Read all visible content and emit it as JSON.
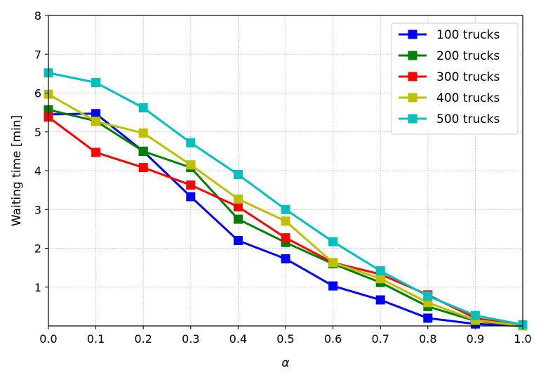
{
  "chart_data": {
    "type": "line",
    "title": "",
    "xlabel": "α",
    "ylabel": "Waiting time [min]",
    "xlim": [
      0.0,
      1.0
    ],
    "ylim": [
      0,
      8
    ],
    "xticks": [
      "0.0",
      "0.1",
      "0.2",
      "0.3",
      "0.4",
      "0.5",
      "0.6",
      "0.7",
      "0.8",
      "0.9",
      "1.0"
    ],
    "yticks": [
      "1",
      "2",
      "3",
      "4",
      "5",
      "6",
      "7",
      "8"
    ],
    "grid": true,
    "legend_position": "top-right",
    "x": [
      0.0,
      0.1,
      0.2,
      0.3,
      0.4,
      0.5,
      0.6,
      0.7,
      0.8,
      0.9,
      1.0
    ],
    "series": [
      {
        "name": "100 trucks",
        "color": "#0000ff",
        "values": [
          5.45,
          5.47,
          4.5,
          3.33,
          2.2,
          1.73,
          1.03,
          0.67,
          0.2,
          0.05,
          0.0
        ]
      },
      {
        "name": "200 trucks",
        "color": "#008000",
        "values": [
          5.57,
          5.28,
          4.5,
          4.08,
          2.75,
          2.15,
          1.6,
          1.12,
          0.5,
          0.13,
          0.0
        ]
      },
      {
        "name": "300 trucks",
        "color": "#ff0000",
        "values": [
          5.38,
          4.47,
          4.08,
          3.63,
          3.07,
          2.27,
          1.63,
          1.33,
          0.8,
          0.2,
          0.0
        ]
      },
      {
        "name": "400 trucks",
        "color": "#bfbf00",
        "values": [
          5.97,
          5.27,
          4.97,
          4.15,
          3.27,
          2.7,
          1.63,
          1.22,
          0.6,
          0.15,
          0.0
        ]
      },
      {
        "name": "500 trucks",
        "color": "#00bfbf",
        "values": [
          6.52,
          6.27,
          5.62,
          4.72,
          3.9,
          3.0,
          2.17,
          1.42,
          0.77,
          0.27,
          0.03
        ]
      }
    ]
  }
}
